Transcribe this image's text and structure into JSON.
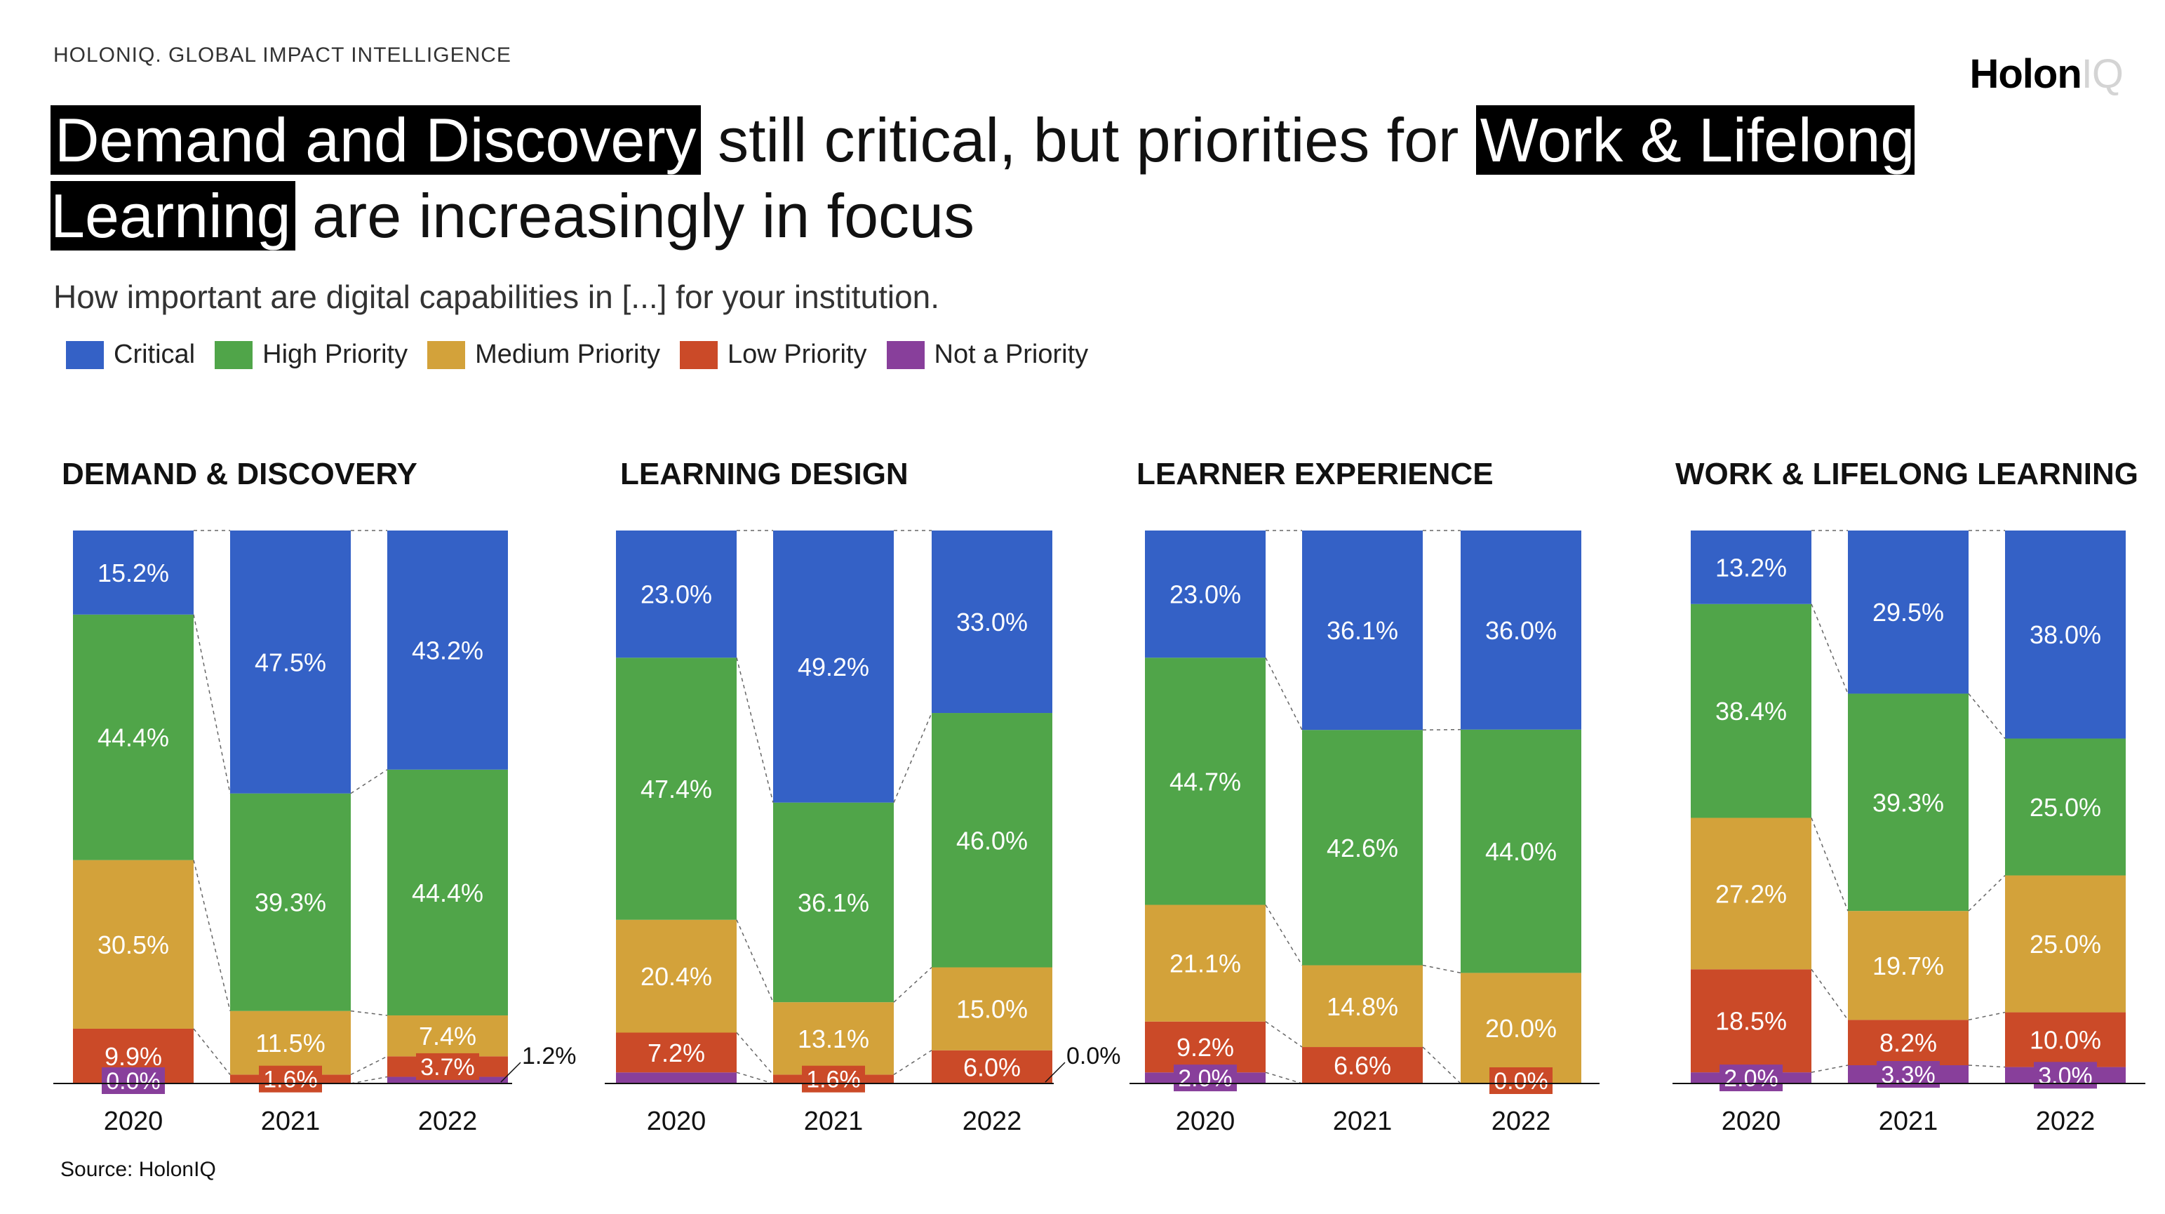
{
  "header": {
    "kicker": "HOLONIQ. GLOBAL IMPACT INTELLIGENCE",
    "brand_bold": "Holon",
    "brand_light": "IQ"
  },
  "headline": {
    "hl1": "Demand and Discovery",
    "t1": " still critical, but priorities for ",
    "hl2": "Work & Lifelong Learning",
    "t2": " are increasingly in focus"
  },
  "subtitle": "How important are digital capabilities in [...] for your institution.",
  "source": "Source: HolonIQ",
  "colors": {
    "critical": "#3461c6",
    "high": "#50a549",
    "medium": "#d3a23a",
    "low": "#cb4a28",
    "not": "#883f9b"
  },
  "legend": [
    {
      "label": "Critical",
      "color": "#3461c6"
    },
    {
      "label": "High Priority",
      "color": "#50a549"
    },
    {
      "label": "Medium Priority",
      "color": "#d3a23a"
    },
    {
      "label": "Low Priority",
      "color": "#cb4a28"
    },
    {
      "label": "Not a Priority",
      "color": "#883f9b"
    }
  ],
  "chart_data": [
    {
      "type": "bar",
      "stacked": true,
      "title": "DEMAND & DISCOVERY",
      "categories": [
        "2020",
        "2021",
        "2022"
      ],
      "series": [
        {
          "name": "Critical",
          "values": [
            15.2,
            47.5,
            43.2
          ],
          "labels": [
            "15.2%",
            "47.5%",
            "43.2%"
          ]
        },
        {
          "name": "High Priority",
          "values": [
            44.4,
            39.3,
            44.4
          ],
          "labels": [
            "44.4%",
            "39.3%",
            "44.4%"
          ]
        },
        {
          "name": "Medium Priority",
          "values": [
            30.5,
            11.5,
            7.4
          ],
          "labels": [
            "30.5%",
            "11.5%",
            "7.4%"
          ]
        },
        {
          "name": "Low Priority",
          "values": [
            9.9,
            1.6,
            3.7
          ],
          "labels": [
            "9.9%",
            "1.6%",
            "3.7%"
          ]
        },
        {
          "name": "Not a Priority",
          "values": [
            0.0,
            0.0,
            1.2
          ],
          "labels": [
            "0.0%",
            "",
            "1.2%"
          ]
        }
      ]
    },
    {
      "type": "bar",
      "stacked": true,
      "title": "LEARNING DESIGN",
      "categories": [
        "2020",
        "2021",
        "2022"
      ],
      "series": [
        {
          "name": "Critical",
          "values": [
            23.0,
            49.2,
            33.0
          ],
          "labels": [
            "23.0%",
            "49.2%",
            "33.0%"
          ]
        },
        {
          "name": "High Priority",
          "values": [
            47.4,
            36.1,
            46.0
          ],
          "labels": [
            "47.4%",
            "36.1%",
            "46.0%"
          ]
        },
        {
          "name": "Medium Priority",
          "values": [
            20.4,
            13.1,
            15.0
          ],
          "labels": [
            "20.4%",
            "13.1%",
            "15.0%"
          ]
        },
        {
          "name": "Low Priority",
          "values": [
            7.2,
            1.6,
            6.0
          ],
          "labels": [
            "7.2%",
            "1.6%",
            "6.0%"
          ]
        },
        {
          "name": "Not a Priority",
          "values": [
            2.0,
            0.0,
            0.0
          ],
          "labels": [
            "",
            "",
            "0.0%"
          ]
        }
      ]
    },
    {
      "type": "bar",
      "stacked": true,
      "title": "LEARNER EXPERIENCE",
      "categories": [
        "2020",
        "2021",
        "2022"
      ],
      "series": [
        {
          "name": "Critical",
          "values": [
            23.0,
            36.1,
            36.0
          ],
          "labels": [
            "23.0%",
            "36.1%",
            "36.0%"
          ]
        },
        {
          "name": "High Priority",
          "values": [
            44.7,
            42.6,
            44.0
          ],
          "labels": [
            "44.7%",
            "42.6%",
            "44.0%"
          ]
        },
        {
          "name": "Medium Priority",
          "values": [
            21.1,
            14.8,
            20.0
          ],
          "labels": [
            "21.1%",
            "14.8%",
            "20.0%"
          ]
        },
        {
          "name": "Low Priority",
          "values": [
            9.2,
            6.6,
            0.0
          ],
          "labels": [
            "9.2%",
            "6.6%",
            "0.0%"
          ]
        },
        {
          "name": "Not a Priority",
          "values": [
            2.0,
            0.0,
            0.0
          ],
          "labels": [
            "2.0%",
            "",
            ""
          ]
        }
      ]
    },
    {
      "type": "bar",
      "stacked": true,
      "title": "WORK & LIFELONG LEARNING",
      "categories": [
        "2020",
        "2021",
        "2022"
      ],
      "series": [
        {
          "name": "Critical",
          "values": [
            13.2,
            29.5,
            38.0
          ],
          "labels": [
            "13.2%",
            "29.5%",
            "38.0%"
          ]
        },
        {
          "name": "High Priority",
          "values": [
            38.4,
            39.3,
            25.0
          ],
          "labels": [
            "38.4%",
            "39.3%",
            "25.0%"
          ]
        },
        {
          "name": "Medium Priority",
          "values": [
            27.2,
            19.7,
            25.0
          ],
          "labels": [
            "27.2%",
            "19.7%",
            "25.0%"
          ]
        },
        {
          "name": "Low Priority",
          "values": [
            18.5,
            8.2,
            10.0
          ],
          "labels": [
            "18.5%",
            "8.2%",
            "10.0%"
          ]
        },
        {
          "name": "Not a Priority",
          "values": [
            2.0,
            3.3,
            3.0
          ],
          "labels": [
            "2.0%",
            "3.3%",
            "3.0%"
          ]
        }
      ]
    }
  ]
}
